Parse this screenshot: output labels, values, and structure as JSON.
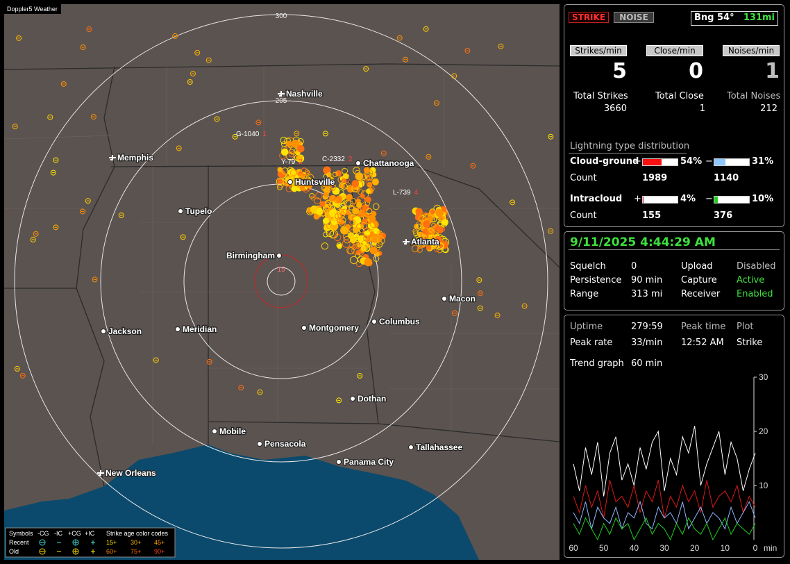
{
  "map": {
    "title": "Doppler5 Weather",
    "range_labels": [
      300,
      205,
      15
    ],
    "cities": [
      "Nashville",
      "Memphis",
      "Chattanooga",
      "Huntsville",
      "Tupelo",
      "Birmingham",
      "Atlanta",
      "Macon",
      "Columbus",
      "Montgomery",
      "Meridian",
      "Jackson",
      "Dothan",
      "Mobile",
      "Pensacola",
      "Tallahassee",
      "Panama City",
      "New Orleans"
    ],
    "stations": [
      {
        "id": "G-1040",
        "count": 1
      },
      {
        "id": "C-2332",
        "count": 2
      },
      {
        "id": "Y-79",
        "count": 2
      },
      {
        "id": "L-739",
        "count": 4
      }
    ]
  },
  "legend": {
    "symbols_label": "Symbols",
    "types": [
      "-CG",
      "-IC",
      "+CG",
      "+IC"
    ],
    "age_label": "Strike age color codes",
    "rows": [
      {
        "label": "Recent",
        "ages": [
          "15+",
          "30+",
          "45+"
        ]
      },
      {
        "label": "Old",
        "ages": [
          "60+",
          "75+",
          "90+"
        ]
      }
    ]
  },
  "panel": {
    "buttons": [
      "STRIKE",
      "NOISE"
    ],
    "bearing": "Bng 54°",
    "distance": "131mi",
    "rates": [
      {
        "label": "Strikes/min",
        "value": 5
      },
      {
        "label": "Close/min",
        "value": 0
      },
      {
        "label": "Noises/min",
        "value": 1
      }
    ],
    "totals": [
      {
        "label": "Total Strikes",
        "value": 3660
      },
      {
        "label": "Total Close",
        "value": 1
      },
      {
        "label": "Total Noises",
        "value": 212
      }
    ],
    "distribution": {
      "title": "Lightning type distribution",
      "count_label": "Count",
      "rows": [
        {
          "label": "Cloud-ground",
          "pos": {
            "value": 54,
            "label": "54%"
          },
          "neg": {
            "value": 31,
            "label": "31%"
          },
          "pos_count": 1989,
          "neg_count": 1140
        },
        {
          "label": "Intracloud",
          "pos": {
            "value": 4,
            "label": "4%"
          },
          "neg": {
            "value": 10,
            "label": "10%"
          },
          "pos_count": 155,
          "neg_count": 376
        }
      ]
    },
    "datetime": "9/11/2025 4:44:29 AM",
    "settings": [
      [
        "Squelch",
        0,
        "Upload",
        "Disabled"
      ],
      [
        "Persistence",
        "90 min",
        "Capture",
        "Active"
      ],
      [
        "Range",
        "313 mi",
        "Receiver",
        "Enabled"
      ]
    ],
    "stats": [
      [
        "Uptime",
        "279:59",
        "Peak time",
        "Plot"
      ],
      [
        "Peak rate",
        "33/min",
        "12:52 AM",
        "Strike"
      ]
    ],
    "trend_label": "Trend graph",
    "trend_span": "60 min"
  },
  "trend_chart": {
    "type": "line",
    "x": [
      60,
      58,
      56,
      54,
      52,
      50,
      48,
      46,
      44,
      42,
      40,
      38,
      36,
      34,
      32,
      30,
      28,
      26,
      24,
      22,
      20,
      18,
      16,
      14,
      12,
      10,
      8,
      6,
      4,
      2,
      0
    ],
    "xlim": [
      60,
      0
    ],
    "ylim": [
      0,
      30
    ],
    "xticks": [
      60,
      50,
      40,
      30,
      20,
      10,
      0
    ],
    "yticks": [
      10,
      20,
      30
    ],
    "x_unit": "min",
    "series": [
      {
        "color": "#ffffff",
        "values": [
          14,
          9,
          17,
          12,
          18,
          8,
          16,
          19,
          11,
          14,
          10,
          17,
          13,
          18,
          20,
          9,
          15,
          12,
          19,
          16,
          21,
          10,
          14,
          17,
          20,
          12,
          18,
          15,
          9,
          13,
          16
        ]
      },
      {
        "color": "#e01818",
        "values": [
          8,
          5,
          10,
          6,
          9,
          4,
          11,
          7,
          8,
          6,
          10,
          5,
          9,
          7,
          11,
          4,
          8,
          6,
          10,
          7,
          9,
          5,
          11,
          6,
          8,
          9,
          7,
          10,
          5,
          8,
          6
        ]
      },
      {
        "color": "#8fb8ff",
        "values": [
          5,
          3,
          7,
          2,
          6,
          4,
          3,
          6,
          2,
          5,
          4,
          7,
          3,
          2,
          6,
          4,
          5,
          3,
          7,
          2,
          4,
          6,
          3,
          5,
          4,
          2,
          6,
          3,
          5,
          7,
          4
        ]
      },
      {
        "color": "#20d020",
        "values": [
          3,
          1,
          4,
          2,
          0,
          3,
          1,
          4,
          2,
          3,
          0,
          2,
          4,
          1,
          3,
          2,
          0,
          3,
          1,
          4,
          2,
          1,
          3,
          0,
          2,
          4,
          1,
          3,
          2,
          1,
          3
        ]
      }
    ]
  }
}
